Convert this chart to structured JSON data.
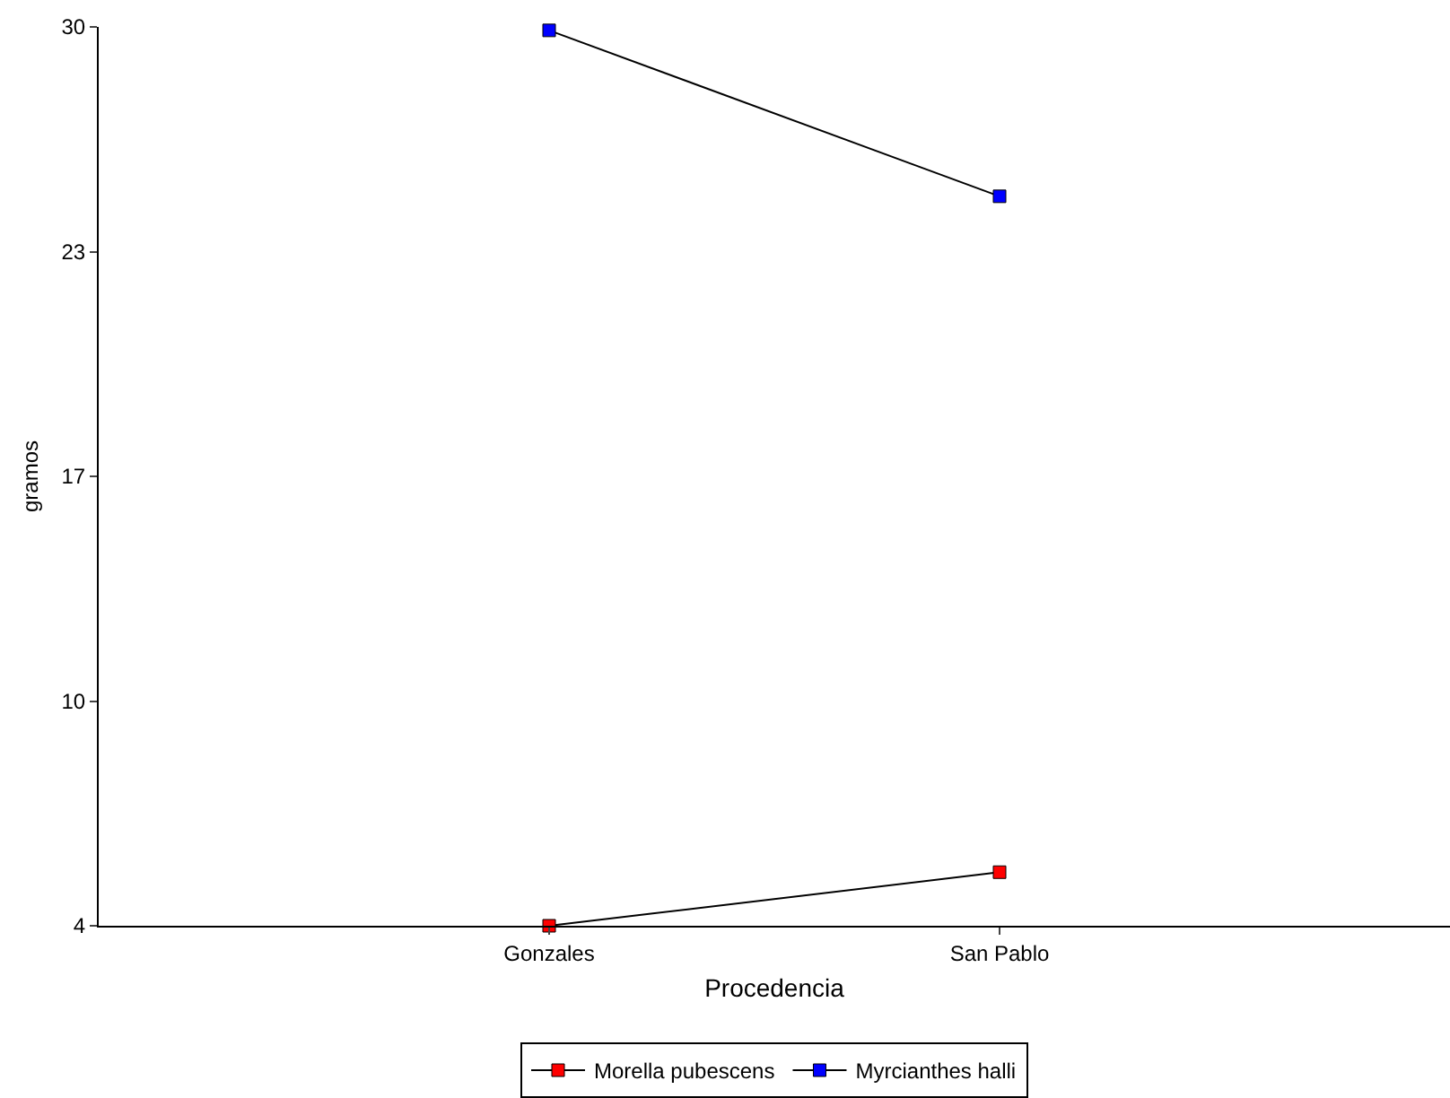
{
  "chart_data": {
    "type": "line",
    "xlabel": "Procedencia",
    "ylabel": "gramos",
    "categories": [
      "Gonzales",
      "San Pablo"
    ],
    "series": [
      {
        "name": "Morella pubescens",
        "color": "#ff0000",
        "values": [
          4.0,
          5.55
        ]
      },
      {
        "name": "Myrcianthes halli",
        "color": "#0000ff",
        "values": [
          29.9,
          25.1
        ]
      }
    ],
    "ylim": [
      4,
      30
    ],
    "yticks": [
      4,
      {
        "value": 10.5,
        "label": "10"
      },
      17,
      {
        "value": 23.5,
        "label": "23"
      },
      30
    ],
    "grid": false,
    "legend": "bottom",
    "marker": "square",
    "line_style": "solid"
  }
}
